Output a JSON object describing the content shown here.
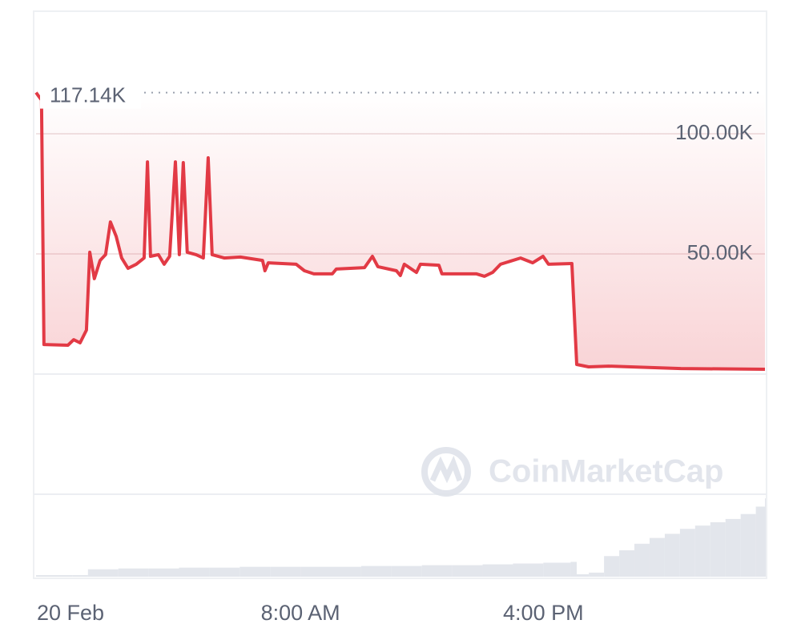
{
  "chart_data": {
    "type": "line",
    "x": [
      -0.71,
      -0.53,
      -0.45,
      0.34,
      0.53,
      0.74,
      0.95,
      1.06,
      1.21,
      1.4,
      1.58,
      1.74,
      1.93,
      2.11,
      2.32,
      2.59,
      2.85,
      2.96,
      3.06,
      3.32,
      3.51,
      3.69,
      3.88,
      4.01,
      4.14,
      4.27,
      4.56,
      4.8,
      4.96,
      5.09,
      5.49,
      6.02,
      6.75,
      6.83,
      6.94,
      7.86,
      8.13,
      8.44,
      9.05,
      9.18,
      10.11,
      10.37,
      10.55,
      11.16,
      11.29,
      11.42,
      11.82,
      11.95,
      12.56,
      12.66,
      13.8,
      14.06,
      14.33,
      14.59,
      15.25,
      15.65,
      15.99,
      16.17,
      16.94,
      17.1,
      17.49,
      18.15,
      20.53,
      23.3
    ],
    "values": [
      117140,
      114000,
      12300,
      12000,
      14300,
      13000,
      18300,
      50700,
      39700,
      47300,
      49700,
      63300,
      57300,
      48300,
      44000,
      45700,
      48300,
      88300,
      49000,
      49700,
      45700,
      49000,
      88300,
      49700,
      88000,
      50700,
      49700,
      48300,
      90000,
      49700,
      48300,
      48700,
      47300,
      43000,
      46300,
      45700,
      43000,
      41700,
      41700,
      43700,
      44300,
      49000,
      44700,
      43000,
      41000,
      45700,
      42300,
      45700,
      45300,
      41700,
      41700,
      40700,
      42300,
      45700,
      48300,
      46300,
      49000,
      45700,
      46000,
      4000,
      3000,
      3300,
      2300,
      2000
    ],
    "color": "#e23a45",
    "xlim": [
      -0.71,
      23.3
    ],
    "xticks": [
      {
        "value": 0,
        "label": "20 Feb"
      },
      {
        "value": 8,
        "label": "8:00 AM"
      },
      {
        "value": 16,
        "label": "4:00 PM"
      }
    ],
    "ylim": [
      0,
      150670
    ],
    "yticks": [
      {
        "value": 50000,
        "label": "50.00K"
      },
      {
        "value": 100000,
        "label": "100.00K"
      }
    ],
    "grid": true,
    "annotation": {
      "value": 117140,
      "label": "117.14K"
    },
    "watermark": "CoinMarketCap",
    "volume": {
      "color": "#e3e6ec",
      "ylim": [
        0,
        100
      ],
      "x": [
        -0.71,
        0.5,
        1.0,
        2,
        3,
        4,
        5,
        6,
        7,
        8,
        9,
        10,
        11,
        12,
        13,
        14,
        15,
        16,
        16.9,
        17.1,
        17.5,
        18,
        18.5,
        19,
        19.5,
        20,
        20.5,
        21,
        21.5,
        22,
        22.5,
        23,
        23.3
      ],
      "values": [
        2,
        2,
        9,
        10,
        10,
        11,
        11,
        12,
        12,
        12,
        12,
        13,
        13,
        14,
        14,
        15,
        16,
        17,
        18,
        3,
        5,
        25,
        32,
        40,
        47,
        52,
        58,
        62,
        66,
        70,
        76,
        85,
        95
      ]
    }
  }
}
